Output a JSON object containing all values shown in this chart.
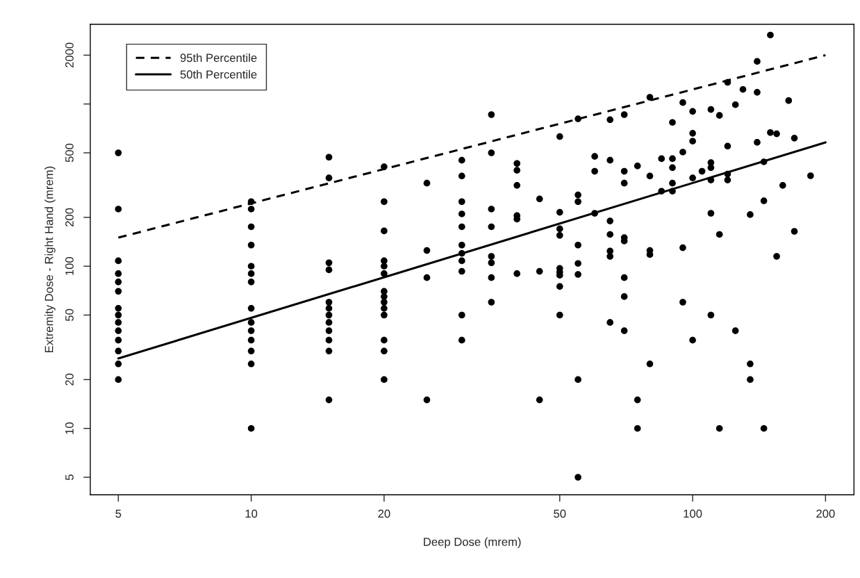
{
  "chart_data": {
    "type": "scatter",
    "xlabel": "Deep Dose (mrem)",
    "ylabel": "Extremity Dose - Right Hand (mrem)",
    "log": "xy",
    "grid": false,
    "legend": "top left",
    "xlim": [
      4.32,
      232
    ],
    "xticks": [
      5,
      10,
      20,
      50,
      100,
      200
    ],
    "ylim": [
      3.9,
      3100
    ],
    "yticks": [
      5,
      10,
      20,
      50,
      100,
      200,
      500,
      {
        "value": 1000,
        "label": null
      },
      2000
    ],
    "series": [
      {
        "color": "#000000",
        "marker": "circle",
        "x": [
          5,
          5,
          5,
          5,
          5,
          5,
          5,
          5,
          5,
          5,
          5,
          5,
          5,
          5,
          10,
          10,
          10,
          10,
          10,
          10,
          10,
          10,
          10,
          10,
          10,
          10,
          10,
          10,
          15,
          15,
          15,
          15,
          15,
          15,
          15,
          15,
          15,
          15,
          15,
          15,
          20,
          20,
          20,
          20,
          20,
          20,
          20,
          20,
          20,
          20,
          20,
          20,
          20,
          20,
          25,
          25,
          25,
          25,
          30,
          30,
          30,
          30,
          30,
          30,
          30,
          30,
          30,
          30,
          30,
          35,
          35,
          35,
          35,
          35,
          35,
          35,
          35,
          40,
          40,
          40,
          40,
          40,
          40,
          45,
          45,
          45,
          50,
          50,
          50,
          50,
          50,
          50,
          50,
          50,
          50,
          55,
          55,
          55,
          55,
          55,
          55,
          55,
          55,
          60,
          60,
          60,
          65,
          65,
          65,
          65,
          65,
          65,
          65,
          70,
          70,
          70,
          70,
          70,
          70,
          70,
          70,
          75,
          75,
          75,
          80,
          80,
          80,
          80,
          80,
          85,
          85,
          90,
          90,
          90,
          90,
          90,
          95,
          95,
          95,
          95,
          100,
          100,
          100,
          100,
          100,
          105,
          110,
          110,
          110,
          110,
          110,
          110,
          115,
          115,
          115,
          120,
          120,
          120,
          120,
          125,
          125,
          130,
          135,
          135,
          135,
          140,
          140,
          140,
          145,
          145,
          145,
          150,
          150,
          155,
          155,
          160,
          165,
          170,
          170,
          185
        ],
        "values": [
          500,
          225,
          108,
          90,
          80,
          70,
          55,
          50,
          45,
          40,
          35,
          30,
          25,
          20,
          250,
          225,
          175,
          135,
          100,
          90,
          80,
          55,
          45,
          40,
          35,
          30,
          25,
          10,
          470,
          350,
          105,
          95,
          60,
          55,
          50,
          45,
          40,
          35,
          30,
          15,
          410,
          250,
          165,
          108,
          100,
          90,
          70,
          65,
          60,
          55,
          50,
          35,
          30,
          20,
          325,
          125,
          85,
          15,
          450,
          360,
          250,
          210,
          175,
          135,
          120,
          108,
          93,
          50,
          35,
          860,
          500,
          225,
          175,
          115,
          105,
          85,
          60,
          430,
          390,
          315,
          205,
          195,
          90,
          260,
          93,
          15,
          630,
          215,
          170,
          155,
          97,
          92,
          88,
          75,
          50,
          810,
          275,
          250,
          135,
          104,
          89,
          20,
          5,
          475,
          385,
          212,
          800,
          450,
          190,
          157,
          124,
          115,
          45,
          860,
          385,
          325,
          150,
          143,
          85,
          65,
          40,
          415,
          15,
          10,
          1100,
          360,
          125,
          118,
          25,
          460,
          290,
          770,
          460,
          405,
          325,
          290,
          1020,
          505,
          130,
          60,
          900,
          660,
          590,
          350,
          35,
          385,
          925,
          435,
          405,
          340,
          212,
          50,
          850,
          157,
          10,
          1360,
          550,
          370,
          340,
          990,
          40,
          1230,
          208,
          25,
          20,
          1830,
          1180,
          580,
          440,
          253,
          10,
          2660,
          667,
          655,
          115,
          315,
          1050,
          616,
          164,
          361
        ]
      },
      {
        "type": "line",
        "name": "95th Percentile",
        "color": "#000000",
        "line_style": "dashed",
        "x": [
          5,
          200
        ],
        "values": [
          150,
          2000
        ]
      },
      {
        "type": "line",
        "name": "50th Percentile",
        "color": "#000000",
        "line_style": "solid",
        "x": [
          5,
          200
        ],
        "values": [
          27,
          580
        ]
      }
    ]
  }
}
